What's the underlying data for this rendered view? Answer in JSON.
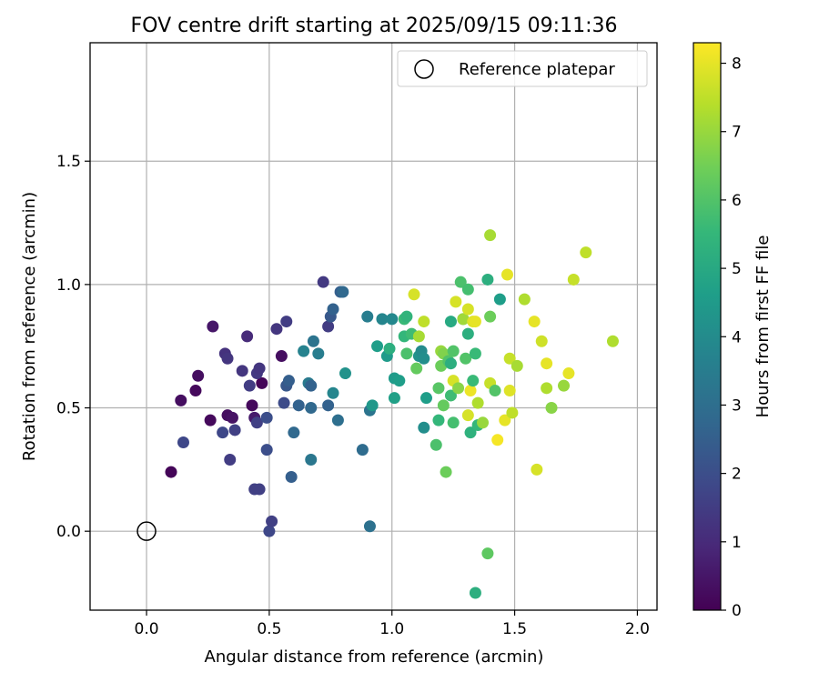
{
  "chart_data": {
    "type": "scatter",
    "title": "FOV centre drift starting at 2025/09/15 09:11:36",
    "xlabel": "Angular distance from reference (arcmin)",
    "ylabel": "Rotation from reference (arcmin)",
    "xlim": [
      -0.23,
      2.08
    ],
    "ylim": [
      -0.32,
      1.98
    ],
    "xticks": [
      0.0,
      0.5,
      1.0,
      1.5,
      2.0
    ],
    "xtick_labels": [
      "0.0",
      "0.5",
      "1.0",
      "1.5",
      "2.0"
    ],
    "yticks": [
      0.0,
      0.5,
      1.0,
      1.5
    ],
    "ytick_labels": [
      "0.0",
      "0.5",
      "1.0",
      "1.5"
    ],
    "grid": true,
    "legend": {
      "position": "top-right",
      "entries": [
        {
          "label": "Reference platepar",
          "marker": "open-circle"
        }
      ]
    },
    "reference_point": {
      "x": 0.0,
      "y": 0.0
    },
    "colorbar": {
      "label": "Hours from first FF file",
      "range": [
        0,
        8.3
      ],
      "ticks": [
        0,
        1,
        2,
        3,
        4,
        5,
        6,
        7,
        8
      ],
      "tick_labels": [
        "0",
        "1",
        "2",
        "3",
        "4",
        "5",
        "6",
        "7",
        "8"
      ],
      "colormap": "viridis"
    },
    "colormap_stops": [
      "#440154",
      "#482878",
      "#3e4989",
      "#31688e",
      "#26828e",
      "#1f9e89",
      "#35b779",
      "#6ece58",
      "#b5de2b",
      "#fde725"
    ],
    "points": [
      {
        "x": 0.1,
        "y": 0.24,
        "h": 0.1
      },
      {
        "x": 0.14,
        "y": 0.53,
        "h": 0.3
      },
      {
        "x": 0.2,
        "y": 0.57,
        "h": 0.2
      },
      {
        "x": 0.21,
        "y": 0.63,
        "h": 0.3
      },
      {
        "x": 0.26,
        "y": 0.45,
        "h": 0.2
      },
      {
        "x": 0.27,
        "y": 0.83,
        "h": 0.5
      },
      {
        "x": 0.33,
        "y": 0.47,
        "h": 0.3
      },
      {
        "x": 0.35,
        "y": 0.46,
        "h": 0.4
      },
      {
        "x": 0.43,
        "y": 0.51,
        "h": 0.2
      },
      {
        "x": 0.44,
        "y": 0.46,
        "h": 0.6
      },
      {
        "x": 0.47,
        "y": 0.6,
        "h": 0.1
      },
      {
        "x": 0.55,
        "y": 0.71,
        "h": 0.3
      },
      {
        "x": 0.36,
        "y": 0.41,
        "h": 1.6
      },
      {
        "x": 0.15,
        "y": 0.36,
        "h": 1.8
      },
      {
        "x": 0.31,
        "y": 0.4,
        "h": 1.8
      },
      {
        "x": 0.34,
        "y": 0.29,
        "h": 1.5
      },
      {
        "x": 0.32,
        "y": 0.72,
        "h": 1.2
      },
      {
        "x": 0.33,
        "y": 0.7,
        "h": 1.3
      },
      {
        "x": 0.39,
        "y": 0.65,
        "h": 1.3
      },
      {
        "x": 0.41,
        "y": 0.79,
        "h": 1.0
      },
      {
        "x": 0.42,
        "y": 0.59,
        "h": 1.5
      },
      {
        "x": 0.45,
        "y": 0.64,
        "h": 1.4
      },
      {
        "x": 0.46,
        "y": 0.66,
        "h": 1.3
      },
      {
        "x": 0.44,
        "y": 0.17,
        "h": 1.6
      },
      {
        "x": 0.46,
        "y": 0.17,
        "h": 1.6
      },
      {
        "x": 0.45,
        "y": 0.44,
        "h": 1.6
      },
      {
        "x": 0.49,
        "y": 0.46,
        "h": 2.0
      },
      {
        "x": 0.49,
        "y": 0.33,
        "h": 2.0
      },
      {
        "x": 0.5,
        "y": 0.0,
        "h": 1.8
      },
      {
        "x": 0.51,
        "y": 0.04,
        "h": 1.6
      },
      {
        "x": 0.53,
        "y": 0.82,
        "h": 1.3
      },
      {
        "x": 0.57,
        "y": 0.85,
        "h": 1.5
      },
      {
        "x": 0.56,
        "y": 0.52,
        "h": 1.9
      },
      {
        "x": 0.57,
        "y": 0.59,
        "h": 2.3
      },
      {
        "x": 0.58,
        "y": 0.61,
        "h": 2.5
      },
      {
        "x": 0.59,
        "y": 0.22,
        "h": 2.5
      },
      {
        "x": 0.6,
        "y": 0.4,
        "h": 2.8
      },
      {
        "x": 0.62,
        "y": 0.51,
        "h": 2.6
      },
      {
        "x": 0.66,
        "y": 0.6,
        "h": 3.4
      },
      {
        "x": 0.67,
        "y": 0.59,
        "h": 2.6
      },
      {
        "x": 0.67,
        "y": 0.5,
        "h": 2.8
      },
      {
        "x": 0.68,
        "y": 0.77,
        "h": 3.2
      },
      {
        "x": 0.67,
        "y": 0.29,
        "h": 3.3
      },
      {
        "x": 0.72,
        "y": 1.01,
        "h": 1.4
      },
      {
        "x": 0.74,
        "y": 0.83,
        "h": 1.5
      },
      {
        "x": 0.75,
        "y": 0.87,
        "h": 2.3
      },
      {
        "x": 0.76,
        "y": 0.9,
        "h": 2.6
      },
      {
        "x": 0.74,
        "y": 0.51,
        "h": 2.6
      },
      {
        "x": 0.7,
        "y": 0.72,
        "h": 3.5
      },
      {
        "x": 0.76,
        "y": 0.56,
        "h": 3.8
      },
      {
        "x": 0.79,
        "y": 0.97,
        "h": 2.5
      },
      {
        "x": 0.8,
        "y": 0.97,
        "h": 2.8
      },
      {
        "x": 0.78,
        "y": 0.45,
        "h": 3.0
      },
      {
        "x": 0.81,
        "y": 0.64,
        "h": 4.2
      },
      {
        "x": 0.64,
        "y": 0.73,
        "h": 3.7
      },
      {
        "x": 0.88,
        "y": 0.33,
        "h": 2.9
      },
      {
        "x": 0.9,
        "y": 0.87,
        "h": 3.5
      },
      {
        "x": 0.91,
        "y": 0.49,
        "h": 3.2
      },
      {
        "x": 0.91,
        "y": 0.02,
        "h": 3.1
      },
      {
        "x": 0.92,
        "y": 0.51,
        "h": 4.4
      },
      {
        "x": 0.94,
        "y": 0.75,
        "h": 4.6
      },
      {
        "x": 0.96,
        "y": 0.86,
        "h": 3.8
      },
      {
        "x": 0.98,
        "y": 0.71,
        "h": 4.5
      },
      {
        "x": 0.99,
        "y": 0.74,
        "h": 5.2
      },
      {
        "x": 1.0,
        "y": 0.86,
        "h": 3.9
      },
      {
        "x": 1.01,
        "y": 0.62,
        "h": 4.5
      },
      {
        "x": 1.01,
        "y": 0.54,
        "h": 4.7
      },
      {
        "x": 1.03,
        "y": 0.61,
        "h": 4.6
      },
      {
        "x": 1.05,
        "y": 0.79,
        "h": 5.5
      },
      {
        "x": 1.05,
        "y": 0.86,
        "h": 5.6
      },
      {
        "x": 1.06,
        "y": 0.87,
        "h": 5.4
      },
      {
        "x": 1.06,
        "y": 0.72,
        "h": 5.9
      },
      {
        "x": 1.08,
        "y": 0.8,
        "h": 5.7
      },
      {
        "x": 1.09,
        "y": 0.96,
        "h": 7.8
      },
      {
        "x": 1.1,
        "y": 0.66,
        "h": 6.3
      },
      {
        "x": 1.11,
        "y": 0.79,
        "h": 7.2
      },
      {
        "x": 1.11,
        "y": 0.71,
        "h": 4.2
      },
      {
        "x": 1.12,
        "y": 0.73,
        "h": 4.0
      },
      {
        "x": 1.13,
        "y": 0.7,
        "h": 4.1
      },
      {
        "x": 1.13,
        "y": 0.42,
        "h": 4.1
      },
      {
        "x": 1.13,
        "y": 0.85,
        "h": 7.5
      },
      {
        "x": 1.14,
        "y": 0.54,
        "h": 4.6
      },
      {
        "x": 1.18,
        "y": 0.35,
        "h": 5.9
      },
      {
        "x": 1.19,
        "y": 0.45,
        "h": 5.5
      },
      {
        "x": 1.19,
        "y": 0.58,
        "h": 6.1
      },
      {
        "x": 1.2,
        "y": 0.67,
        "h": 6.4
      },
      {
        "x": 1.2,
        "y": 0.73,
        "h": 7.0
      },
      {
        "x": 1.21,
        "y": 0.72,
        "h": 6.7
      },
      {
        "x": 1.21,
        "y": 0.51,
        "h": 6.3
      },
      {
        "x": 1.22,
        "y": 0.24,
        "h": 6.4
      },
      {
        "x": 1.23,
        "y": 0.69,
        "h": 6.0
      },
      {
        "x": 1.24,
        "y": 0.68,
        "h": 5.2
      },
      {
        "x": 1.24,
        "y": 0.55,
        "h": 5.7
      },
      {
        "x": 1.24,
        "y": 0.85,
        "h": 5.0
      },
      {
        "x": 1.25,
        "y": 0.73,
        "h": 6.0
      },
      {
        "x": 1.25,
        "y": 0.61,
        "h": 7.8
      },
      {
        "x": 1.25,
        "y": 0.44,
        "h": 5.8
      },
      {
        "x": 1.26,
        "y": 0.93,
        "h": 7.8
      },
      {
        "x": 1.27,
        "y": 0.58,
        "h": 6.8
      },
      {
        "x": 1.28,
        "y": 1.01,
        "h": 5.9
      },
      {
        "x": 1.29,
        "y": 0.86,
        "h": 5.5
      },
      {
        "x": 1.29,
        "y": 0.86,
        "h": 7.1
      },
      {
        "x": 1.3,
        "y": 0.7,
        "h": 6.0
      },
      {
        "x": 1.31,
        "y": 0.47,
        "h": 7.8
      },
      {
        "x": 1.31,
        "y": 0.98,
        "h": 5.8
      },
      {
        "x": 1.31,
        "y": 0.9,
        "h": 7.8
      },
      {
        "x": 1.31,
        "y": 0.8,
        "h": 5.2
      },
      {
        "x": 1.32,
        "y": 0.4,
        "h": 5.3
      },
      {
        "x": 1.32,
        "y": 0.57,
        "h": 8.1
      },
      {
        "x": 1.33,
        "y": 0.61,
        "h": 5.6
      },
      {
        "x": 1.33,
        "y": 0.85,
        "h": 7.9
      },
      {
        "x": 1.34,
        "y": 0.85,
        "h": 8.0
      },
      {
        "x": 1.34,
        "y": 0.72,
        "h": 5.6
      },
      {
        "x": 1.34,
        "y": -0.25,
        "h": 5.2
      },
      {
        "x": 1.35,
        "y": 0.43,
        "h": 5.5
      },
      {
        "x": 1.35,
        "y": 0.52,
        "h": 7.3
      },
      {
        "x": 1.37,
        "y": 0.44,
        "h": 7.0
      },
      {
        "x": 1.39,
        "y": 1.02,
        "h": 5.2
      },
      {
        "x": 1.39,
        "y": -0.09,
        "h": 6.2
      },
      {
        "x": 1.4,
        "y": 0.6,
        "h": 7.6
      },
      {
        "x": 1.4,
        "y": 0.87,
        "h": 6.4
      },
      {
        "x": 1.4,
        "y": 1.2,
        "h": 7.2
      },
      {
        "x": 1.42,
        "y": 0.57,
        "h": 6.0
      },
      {
        "x": 1.43,
        "y": 0.37,
        "h": 8.2
      },
      {
        "x": 1.44,
        "y": 0.94,
        "h": 4.6
      },
      {
        "x": 1.46,
        "y": 0.45,
        "h": 8.0
      },
      {
        "x": 1.47,
        "y": 1.04,
        "h": 8.0
      },
      {
        "x": 1.48,
        "y": 0.7,
        "h": 7.6
      },
      {
        "x": 1.48,
        "y": 0.57,
        "h": 7.9
      },
      {
        "x": 1.49,
        "y": 0.48,
        "h": 7.5
      },
      {
        "x": 1.51,
        "y": 0.67,
        "h": 7.2
      },
      {
        "x": 1.54,
        "y": 0.94,
        "h": 7.3
      },
      {
        "x": 1.58,
        "y": 0.85,
        "h": 8.0
      },
      {
        "x": 1.59,
        "y": 0.25,
        "h": 7.8
      },
      {
        "x": 1.61,
        "y": 0.77,
        "h": 7.7
      },
      {
        "x": 1.63,
        "y": 0.68,
        "h": 8.0
      },
      {
        "x": 1.63,
        "y": 0.58,
        "h": 7.3
      },
      {
        "x": 1.65,
        "y": 0.5,
        "h": 6.8
      },
      {
        "x": 1.7,
        "y": 0.59,
        "h": 7.0
      },
      {
        "x": 1.72,
        "y": 0.64,
        "h": 8.0
      },
      {
        "x": 1.74,
        "y": 1.02,
        "h": 7.6
      },
      {
        "x": 1.79,
        "y": 1.13,
        "h": 7.5
      },
      {
        "x": 1.9,
        "y": 0.77,
        "h": 7.3
      }
    ]
  }
}
